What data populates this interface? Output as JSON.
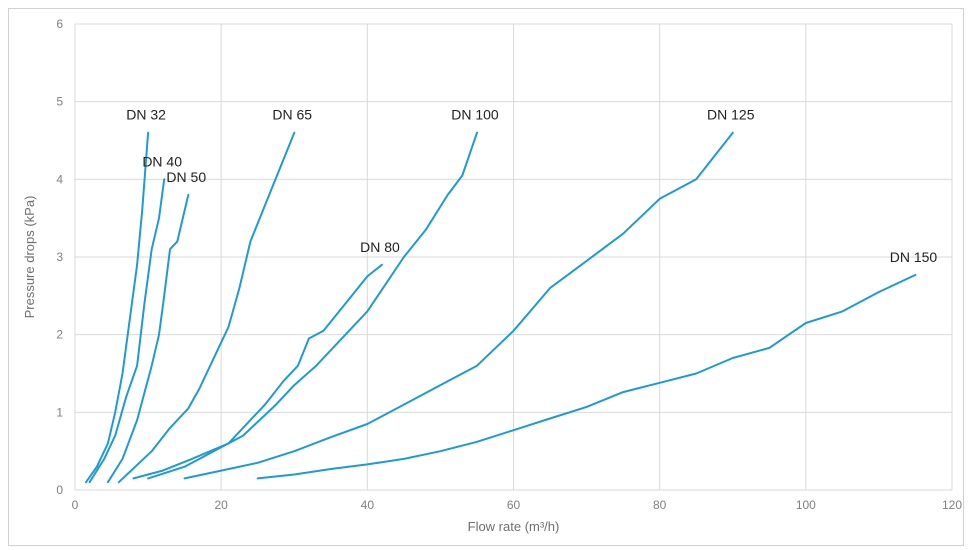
{
  "chart_data": {
    "type": "line",
    "xlabel": "Flow rate (m³/h)",
    "ylabel": "Pressure drops (kPa)",
    "xlim": [
      0,
      120
    ],
    "ylim": [
      0,
      6
    ],
    "xticks": [
      0,
      20,
      40,
      60,
      80,
      100,
      120
    ],
    "yticks": [
      0,
      1,
      2,
      3,
      4,
      5,
      6
    ],
    "grid": true,
    "line_color": "#1f9bd0",
    "series": [
      {
        "name": "DN 32",
        "points": [
          [
            1.5,
            0.1
          ],
          [
            3,
            0.3
          ],
          [
            4.5,
            0.6
          ],
          [
            5.5,
            1.0
          ],
          [
            6.5,
            1.5
          ],
          [
            7.5,
            2.2
          ],
          [
            8.5,
            2.9
          ],
          [
            9.2,
            3.6
          ],
          [
            10,
            4.6
          ]
        ]
      },
      {
        "name": "DN 40",
        "points": [
          [
            2,
            0.1
          ],
          [
            4,
            0.4
          ],
          [
            5.5,
            0.7
          ],
          [
            7,
            1.2
          ],
          [
            8.5,
            1.6
          ],
          [
            9.5,
            2.4
          ],
          [
            10.5,
            3.1
          ],
          [
            11.5,
            3.5
          ],
          [
            12.2,
            4.0
          ]
        ]
      },
      {
        "name": "DN 50",
        "points": [
          [
            4.5,
            0.1
          ],
          [
            6.5,
            0.4
          ],
          [
            8.5,
            0.9
          ],
          [
            10.5,
            1.6
          ],
          [
            11.5,
            2.0
          ],
          [
            12.2,
            2.5
          ],
          [
            13,
            3.1
          ],
          [
            14,
            3.2
          ],
          [
            15.5,
            3.8
          ]
        ]
      },
      {
        "name": "DN 65",
        "points": [
          [
            6,
            0.1
          ],
          [
            10.5,
            0.5
          ],
          [
            13,
            0.8
          ],
          [
            15.5,
            1.05
          ],
          [
            17,
            1.3
          ],
          [
            18.5,
            1.6
          ],
          [
            21,
            2.1
          ],
          [
            22.5,
            2.6
          ],
          [
            24,
            3.2
          ],
          [
            27,
            3.9
          ],
          [
            30,
            4.6
          ]
        ]
      },
      {
        "name": "DN 80",
        "points": [
          [
            8,
            0.15
          ],
          [
            12,
            0.25
          ],
          [
            16,
            0.4
          ],
          [
            21,
            0.6
          ],
          [
            24,
            0.9
          ],
          [
            26,
            1.1
          ],
          [
            28.5,
            1.4
          ],
          [
            30.5,
            1.6
          ],
          [
            32,
            1.95
          ],
          [
            34,
            2.05
          ],
          [
            37,
            2.4
          ],
          [
            40,
            2.75
          ],
          [
            42,
            2.9
          ]
        ]
      },
      {
        "name": "DN 100",
        "points": [
          [
            10,
            0.15
          ],
          [
            15,
            0.3
          ],
          [
            20,
            0.55
          ],
          [
            23,
            0.7
          ],
          [
            27.5,
            1.1
          ],
          [
            30,
            1.35
          ],
          [
            33,
            1.6
          ],
          [
            35,
            1.8
          ],
          [
            40,
            2.3
          ],
          [
            42.5,
            2.65
          ],
          [
            45,
            3.0
          ],
          [
            48,
            3.35
          ],
          [
            51,
            3.8
          ],
          [
            53,
            4.05
          ],
          [
            55,
            4.6
          ]
        ]
      },
      {
        "name": "DN 125",
        "points": [
          [
            15,
            0.15
          ],
          [
            20,
            0.25
          ],
          [
            25,
            0.35
          ],
          [
            30,
            0.5
          ],
          [
            35,
            0.68
          ],
          [
            40,
            0.85
          ],
          [
            45,
            1.1
          ],
          [
            50,
            1.35
          ],
          [
            55,
            1.6
          ],
          [
            60,
            2.05
          ],
          [
            65,
            2.6
          ],
          [
            70,
            2.95
          ],
          [
            75,
            3.3
          ],
          [
            80,
            3.75
          ],
          [
            85,
            4.0
          ],
          [
            90,
            4.6
          ]
        ]
      },
      {
        "name": "DN 150",
        "points": [
          [
            25,
            0.15
          ],
          [
            30,
            0.2
          ],
          [
            35,
            0.27
          ],
          [
            40,
            0.33
          ],
          [
            45,
            0.4
          ],
          [
            50,
            0.5
          ],
          [
            55,
            0.62
          ],
          [
            60,
            0.77
          ],
          [
            65,
            0.92
          ],
          [
            70,
            1.07
          ],
          [
            75,
            1.26
          ],
          [
            80,
            1.38
          ],
          [
            85,
            1.5
          ],
          [
            90,
            1.7
          ],
          [
            95,
            1.83
          ],
          [
            100,
            2.15
          ],
          [
            105,
            2.3
          ],
          [
            110,
            2.55
          ],
          [
            115,
            2.77
          ]
        ]
      }
    ]
  }
}
